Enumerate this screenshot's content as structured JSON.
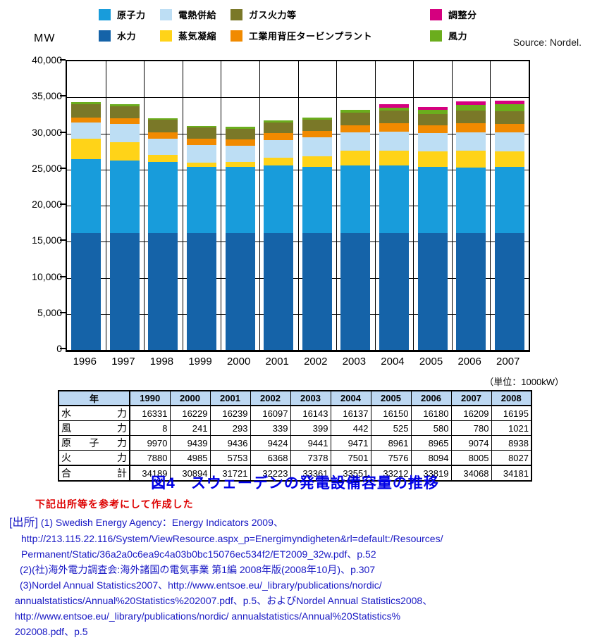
{
  "page": {
    "mw_label": "MW",
    "source_label": "Source: Nordel.",
    "table_unit_label": "（単位：1000kW）",
    "caption": "図4　スウェーデンの発電設備容量の推移",
    "note_red": "下記出所等を参考にして作成した",
    "sources_prefix": "[出所]",
    "source_lines": [
      {
        "text": "(1) Swedish Energy Agency：Energy Indicators 2009、",
        "indent": 13,
        "with_prefix": true
      },
      {
        "text": "http://213.115.22.116/System/ViewResource.aspx_p=Energimyndigheten&rl=default:/Resources/",
        "indent": 30
      },
      {
        "text": "Permanent/Static/36a2a0c6ea9c4a03b0bc15076ec534f2/ET2009_32w.pdf、p.52",
        "indent": 30
      },
      {
        "text": "(2)(社)海外電力調査会:海外諸国の電気事業 第1編 2008年版(2008年10月)、p.307",
        "indent": 28
      },
      {
        "text": "(3)Nordel Annual Statistics2007、http://www.entsoe.eu/_library/publications/nordic/",
        "indent": 28
      },
      {
        "text": "annualstatistics/Annual%20Statistics%202007.pdf、p.5、およびNordel Annual Statistics2008、",
        "indent": 21
      },
      {
        "text": "http://www.entsoe.eu/_library/publications/nordic/ annualstatistics/Annual%20Statistics%",
        "indent": 21
      },
      {
        "text": "202008.pdf、p.5",
        "indent": 21
      }
    ]
  },
  "legend": {
    "columns": [
      {
        "x": 10,
        "items": [
          {
            "label": "原子力",
            "color": "#189cdb"
          },
          {
            "label": "水力",
            "color": "#1563a8"
          }
        ]
      },
      {
        "x": 97,
        "items": [
          {
            "label": "電熱併給",
            "color": "#bddef4"
          },
          {
            "label": "蒸気凝縮",
            "color": "#ffd318"
          }
        ]
      },
      {
        "x": 197,
        "items": [
          {
            "label": "ガス火力等",
            "color": "#7a7828"
          },
          {
            "label": "工業用背圧タービンプラント",
            "color": "#f18a00"
          }
        ]
      },
      {
        "x": 480,
        "items": [
          {
            "label": "調整分",
            "color": "#d5007f"
          },
          {
            "label": "風力",
            "color": "#6bad1d"
          }
        ]
      }
    ]
  },
  "chart_data": {
    "type": "bar",
    "subtype": "stacked-vertical",
    "ylabel": "MW",
    "ylim": [
      0,
      40000
    ],
    "ytick_interval": 5000,
    "ytick_labels": [
      "0",
      "5,000",
      "10,000",
      "15,000",
      "20,000",
      "25,000",
      "30,000",
      "35,000",
      "40,000"
    ],
    "grid": true,
    "legend_position": "top",
    "source": "Source: Nordel.",
    "categories": [
      "1996",
      "1997",
      "1998",
      "1999",
      "2000",
      "2001",
      "2002",
      "2003",
      "2004",
      "2005",
      "2006",
      "2007"
    ],
    "series": [
      {
        "name": "水力",
        "color": "#1563a8",
        "values": [
          16160,
          16160,
          16160,
          16160,
          16160,
          16160,
          16160,
          16160,
          16160,
          16160,
          16160,
          16160
        ]
      },
      {
        "name": "原子力",
        "color": "#189cdb",
        "values": [
          10290,
          10130,
          9870,
          9170,
          9170,
          9430,
          9170,
          9390,
          9390,
          9170,
          9110,
          9240
        ]
      },
      {
        "name": "蒸気凝縮",
        "color": "#ffd318",
        "values": [
          2870,
          2480,
          960,
          640,
          700,
          1080,
          1510,
          2080,
          2080,
          2170,
          2360,
          2160
        ]
      },
      {
        "name": "電熱併給",
        "color": "#bddef4",
        "values": [
          2160,
          2560,
          2330,
          2390,
          2270,
          2390,
          2640,
          2550,
          2650,
          2550,
          2550,
          2560
        ]
      },
      {
        "name": "工業用背圧タービンプラント",
        "color": "#f18a00",
        "values": [
          710,
          760,
          860,
          890,
          860,
          960,
          890,
          960,
          1110,
          1090,
          1210,
          1170
        ]
      },
      {
        "name": "ガス火力等",
        "color": "#7a7828",
        "values": [
          1910,
          1690,
          1750,
          1600,
          1500,
          1460,
          1560,
          1750,
          1750,
          1580,
          1750,
          1760
        ]
      },
      {
        "name": "風力",
        "color": "#6bad1d",
        "values": [
          230,
          250,
          190,
          220,
          250,
          290,
          320,
          410,
          420,
          520,
          800,
          1050
        ]
      },
      {
        "name": "調整分",
        "color": "#d5007f",
        "values": [
          0,
          0,
          0,
          0,
          0,
          0,
          0,
          0,
          470,
          440,
          480,
          480
        ]
      }
    ]
  },
  "table": {
    "header": [
      "年",
      "1990",
      "2000",
      "2001",
      "2002",
      "2003",
      "2004",
      "2005",
      "2006",
      "2007",
      "2008"
    ],
    "rows": [
      {
        "label": "水力",
        "total": false,
        "cells": [
          "16331",
          "16229",
          "16239",
          "16097",
          "16143",
          "16137",
          "16150",
          "16180",
          "16209",
          "16195"
        ]
      },
      {
        "label": "風力",
        "total": false,
        "cells": [
          "8",
          "241",
          "293",
          "339",
          "399",
          "442",
          "525",
          "580",
          "780",
          "1021"
        ]
      },
      {
        "label": "原子力",
        "total": false,
        "cells": [
          "9970",
          "9439",
          "9436",
          "9424",
          "9441",
          "9471",
          "8961",
          "8965",
          "9074",
          "8938"
        ]
      },
      {
        "label": "火力",
        "total": false,
        "cells": [
          "7880",
          "4985",
          "5753",
          "6368",
          "7378",
          "7501",
          "7576",
          "8094",
          "8005",
          "8027"
        ]
      },
      {
        "label": "合計",
        "total": true,
        "cells": [
          "34189",
          "30894",
          "31721",
          "32223",
          "33361",
          "33551",
          "33212",
          "33819",
          "34068",
          "34181"
        ]
      }
    ]
  }
}
